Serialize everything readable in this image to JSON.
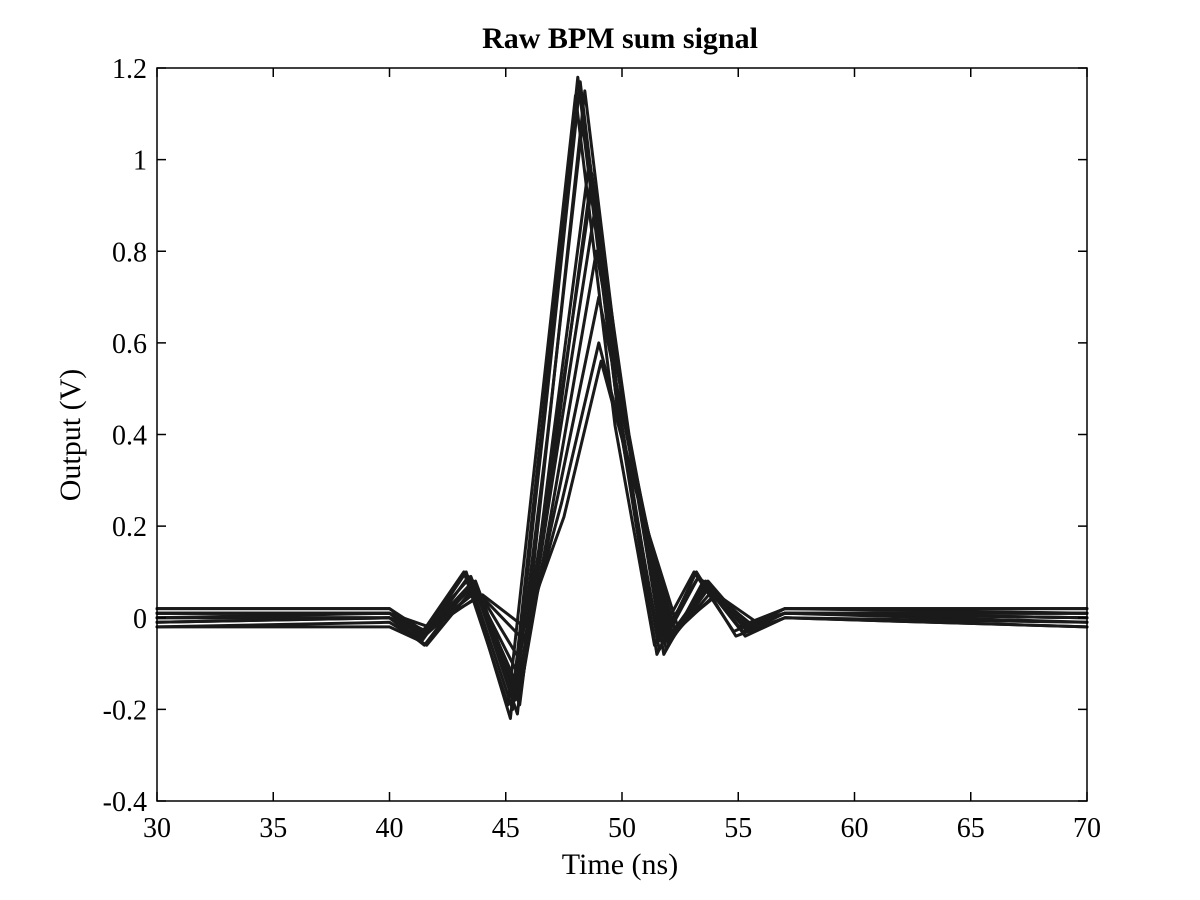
{
  "chart_data": {
    "type": "line",
    "title": "Raw BPM sum signal",
    "xlabel": "Time (ns)",
    "ylabel": "Output (V)",
    "xlim": [
      30,
      70
    ],
    "ylim": [
      -0.4,
      1.2
    ],
    "xticks": [
      30,
      35,
      40,
      45,
      50,
      55,
      60,
      65,
      70
    ],
    "yticks": [
      -0.4,
      -0.2,
      0,
      0.2,
      0.4,
      0.6,
      0.8,
      1,
      1.2
    ],
    "xtick_labels": [
      "30",
      "35",
      "40",
      "45",
      "50",
      "55",
      "60",
      "65",
      "70"
    ],
    "ytick_labels": [
      "-0.4",
      "-0.2",
      "0",
      "0.2",
      "0.4",
      "0.6",
      "0.8",
      "1",
      "1.2"
    ],
    "grid": false,
    "line_color": "#1a1a1a",
    "series": [
      {
        "x": [
          30,
          40,
          41.4,
          43.4,
          45.3,
          46.7,
          48.2,
          49.9,
          51.6,
          53.3,
          55,
          57,
          70
        ],
        "y": [
          0,
          0,
          -0.05,
          0.09,
          -0.2,
          0.45,
          1.17,
          0.45,
          -0.07,
          0.09,
          -0.02,
          0.01,
          0
        ]
      },
      {
        "x": [
          30,
          40,
          41.3,
          43.2,
          45.1,
          46.5,
          48.0,
          49.7,
          51.4,
          53.1,
          54.8,
          57,
          70
        ],
        "y": [
          0.01,
          0.01,
          -0.04,
          0.1,
          -0.19,
          0.45,
          1.14,
          0.42,
          -0.06,
          0.1,
          -0.03,
          0.02,
          0.01
        ]
      },
      {
        "x": [
          30,
          40,
          41.5,
          43.6,
          45.5,
          46.9,
          48.4,
          50.1,
          51.8,
          53.5,
          55.2,
          57,
          70
        ],
        "y": [
          -0.01,
          0,
          -0.06,
          0.08,
          -0.21,
          0.44,
          1.15,
          0.44,
          -0.08,
          0.08,
          -0.03,
          0.01,
          -0.01
        ]
      },
      {
        "x": [
          30,
          40,
          41.4,
          43.5,
          45.4,
          46.8,
          48.3,
          49.9,
          51.6,
          53.3,
          55,
          57,
          70
        ],
        "y": [
          0.02,
          0.02,
          -0.03,
          0.09,
          -0.18,
          0.4,
          1.08,
          0.42,
          -0.05,
          0.09,
          -0.02,
          0.02,
          0.02
        ]
      },
      {
        "x": [
          30,
          40,
          41.6,
          43.7,
          45.6,
          47.0,
          48.6,
          50.2,
          51.9,
          53.6,
          55.3,
          57,
          70
        ],
        "y": [
          -0.02,
          -0.01,
          -0.06,
          0.07,
          -0.19,
          0.38,
          1.0,
          0.4,
          -0.07,
          0.08,
          -0.04,
          0,
          -0.02
        ]
      },
      {
        "x": [
          30,
          40,
          41.4,
          43.6,
          45.5,
          47.0,
          48.7,
          50.3,
          51.9,
          53.6,
          55.3,
          57,
          70
        ],
        "y": [
          0.01,
          0.01,
          -0.04,
          0.08,
          -0.17,
          0.35,
          0.94,
          0.38,
          -0.05,
          0.07,
          -0.02,
          0.01,
          0.01
        ]
      },
      {
        "x": [
          30,
          40,
          41.5,
          43.6,
          45.6,
          47.1,
          48.8,
          50.4,
          52.0,
          53.7,
          55.4,
          57,
          70
        ],
        "y": [
          0,
          0.01,
          -0.04,
          0.07,
          -0.16,
          0.33,
          0.88,
          0.36,
          -0.05,
          0.07,
          -0.03,
          0.01,
          0
        ]
      },
      {
        "x": [
          30,
          40,
          41.5,
          43.7,
          45.7,
          47.2,
          48.9,
          50.5,
          52.1,
          53.8,
          55.5,
          57,
          70
        ],
        "y": [
          -0.01,
          0,
          -0.04,
          0.06,
          -0.14,
          0.3,
          0.8,
          0.34,
          -0.05,
          0.07,
          -0.03,
          0,
          -0.01
        ]
      },
      {
        "x": [
          30,
          40,
          41.6,
          43.8,
          45.7,
          47.3,
          49.0,
          50.6,
          52.2,
          53.9,
          55.6,
          57,
          70
        ],
        "y": [
          0.01,
          0.01,
          -0.03,
          0.06,
          -0.1,
          0.28,
          0.7,
          0.3,
          -0.04,
          0.06,
          -0.02,
          0.01,
          0.01
        ]
      },
      {
        "x": [
          30,
          40,
          41.6,
          43.9,
          45.8,
          47.4,
          49.0,
          50.7,
          52.3,
          54.0,
          55.7,
          57,
          70
        ],
        "y": [
          0,
          0,
          -0.03,
          0.05,
          -0.05,
          0.25,
          0.6,
          0.26,
          -0.03,
          0.05,
          -0.02,
          0.01,
          0
        ]
      },
      {
        "x": [
          30,
          40,
          41.7,
          44.0,
          45.8,
          47.5,
          49.1,
          50.8,
          52.4,
          54.1,
          55.8,
          57,
          70
        ],
        "y": [
          0.01,
          0.01,
          -0.02,
          0.05,
          -0.02,
          0.22,
          0.56,
          0.24,
          -0.02,
          0.05,
          -0.01,
          0.01,
          0.01
        ]
      },
      {
        "x": [
          30,
          40,
          41.3,
          43.3,
          45.2,
          46.6,
          48.1,
          49.8,
          51.5,
          53.2,
          54.9,
          57,
          70
        ],
        "y": [
          -0.02,
          -0.02,
          -0.05,
          0.1,
          -0.22,
          0.44,
          1.18,
          0.46,
          -0.08,
          0.1,
          -0.04,
          0,
          -0.02
        ]
      },
      {
        "x": [
          30,
          40,
          41.5,
          43.7,
          45.6,
          47.1,
          48.7,
          50.3,
          52.0,
          53.7,
          55.4,
          57,
          70
        ],
        "y": [
          0.02,
          0.02,
          -0.03,
          0.08,
          -0.18,
          0.36,
          0.97,
          0.4,
          -0.06,
          0.08,
          -0.02,
          0.02,
          0.02
        ]
      }
    ]
  }
}
